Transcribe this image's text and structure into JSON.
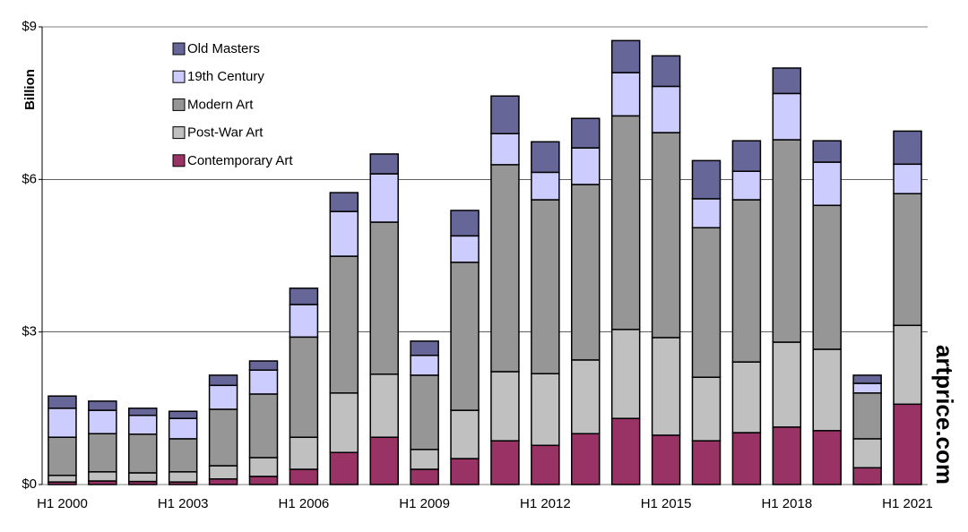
{
  "chart_data": {
    "type": "stacked_bar",
    "ylabel": "Billion",
    "watermark": "artprice.com",
    "categories": [
      "H1 2000",
      null,
      null,
      "H1 2003",
      null,
      null,
      "H1 2006",
      null,
      null,
      "H1 2009",
      null,
      null,
      "H1 2012",
      null,
      null,
      "H1 2015",
      null,
      null,
      "H1 2018",
      null,
      null,
      "H1 2021"
    ],
    "series": [
      {
        "name": "Old Masters",
        "color": "#666699",
        "values": [
          0.24,
          0.18,
          0.14,
          0.14,
          0.2,
          0.18,
          0.32,
          0.37,
          0.39,
          0.28,
          0.5,
          0.74,
          0.6,
          0.58,
          0.63,
          0.6,
          0.75,
          0.6,
          0.5,
          0.42,
          0.16,
          0.65
        ]
      },
      {
        "name": "19th Century",
        "color": "#ccccff",
        "values": [
          0.57,
          0.46,
          0.37,
          0.4,
          0.47,
          0.47,
          0.64,
          0.88,
          0.95,
          0.39,
          0.52,
          0.61,
          0.54,
          0.72,
          0.85,
          0.91,
          0.57,
          0.56,
          0.91,
          0.85,
          0.19,
          0.58
        ]
      },
      {
        "name": "Modern Art",
        "color": "#969696",
        "values": [
          0.75,
          0.75,
          0.76,
          0.65,
          1.11,
          1.25,
          1.97,
          2.69,
          2.99,
          1.46,
          2.91,
          4.07,
          3.42,
          3.45,
          4.2,
          4.03,
          2.94,
          3.19,
          3.98,
          2.83,
          0.9,
          2.59
        ]
      },
      {
        "name": "Post-War Art",
        "color": "#c0c0c0",
        "values": [
          0.13,
          0.18,
          0.17,
          0.2,
          0.26,
          0.37,
          0.63,
          1.17,
          1.24,
          0.39,
          0.95,
          1.36,
          1.41,
          1.45,
          1.75,
          1.92,
          1.25,
          1.39,
          1.67,
          1.6,
          0.57,
          1.55
        ]
      },
      {
        "name": "Contemporary Art",
        "color": "#993366",
        "values": [
          0.05,
          0.07,
          0.06,
          0.05,
          0.11,
          0.16,
          0.3,
          0.63,
          0.93,
          0.3,
          0.51,
          0.86,
          0.77,
          1.0,
          1.3,
          0.97,
          0.86,
          1.02,
          1.13,
          1.06,
          0.33,
          1.58
        ]
      }
    ],
    "ylim": [
      0,
      9
    ],
    "yticks": [
      {
        "value": 0,
        "label": "$0"
      },
      {
        "value": 3,
        "label": "$3"
      },
      {
        "value": 6,
        "label": "$6"
      },
      {
        "value": 9,
        "label": "$9"
      }
    ],
    "grid": true
  }
}
